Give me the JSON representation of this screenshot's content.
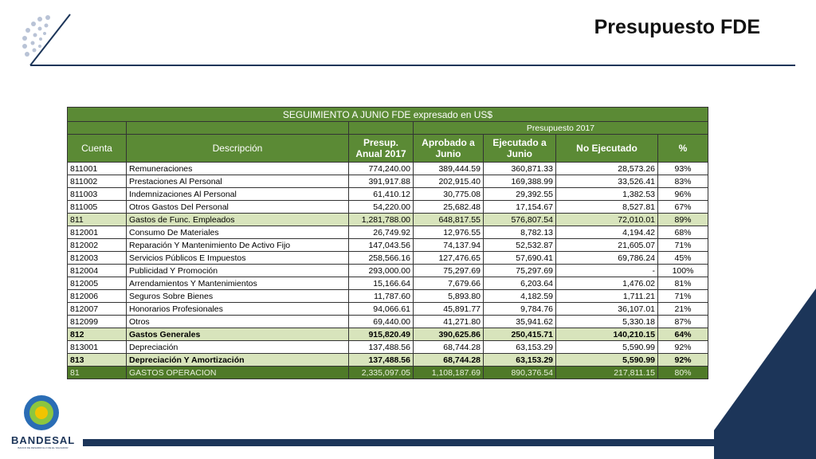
{
  "header": {
    "title": "Presupuesto FDE"
  },
  "logo": {
    "name": "BANDESAL",
    "tagline": "BANCO DE DESARROLLO DE EL SALVADOR"
  },
  "table": {
    "caption": "SEGUIMIENTO A JUNIO   FDE   expresado en US$",
    "group": "Presupuesto 2017",
    "columns": [
      "Cuenta",
      "Descripción",
      "Presup. Anual 2017",
      "Aprobado a Junio",
      "Ejecutado a Junio",
      "No Ejecutado",
      "%"
    ],
    "rows": [
      [
        "811001",
        "Remuneraciones",
        "774,240.00",
        "389,444.59",
        "360,871.33",
        "28,573.26",
        "93%"
      ],
      [
        "811002",
        "Prestaciones Al Personal",
        "391,917.88",
        "202,915.40",
        "169,388.99",
        "33,526.41",
        "83%"
      ],
      [
        "811003",
        "Indemnizaciones Al Personal",
        "61,410.12",
        "30,775.08",
        "29,392.55",
        "1,382.53",
        "96%"
      ],
      [
        "811005",
        "Otros Gastos Del Personal",
        "54,220.00",
        "25,682.48",
        "17,154.67",
        "8,527.81",
        "67%"
      ],
      [
        "811",
        "Gastos de Func. Empleados",
        "1,281,788.00",
        "648,817.55",
        "576,807.54",
        "72,010.01",
        "89%"
      ],
      [
        "812001",
        "Consumo De Materiales",
        "26,749.92",
        "12,976.55",
        "8,782.13",
        "4,194.42",
        "68%"
      ],
      [
        "812002",
        "Reparación Y Mantenimiento De Activo Fijo",
        "147,043.56",
        "74,137.94",
        "52,532.87",
        "21,605.07",
        "71%"
      ],
      [
        "812003",
        "Servicios Públicos E Impuestos",
        "258,566.16",
        "127,476.65",
        "57,690.41",
        "69,786.24",
        "45%"
      ],
      [
        "812004",
        "Publicidad Y Promoción",
        "293,000.00",
        "75,297.69",
        "75,297.69",
        "-",
        "100%"
      ],
      [
        "812005",
        "Arrendamientos Y Mantenimientos",
        "15,166.64",
        "7,679.66",
        "6,203.64",
        "1,476.02",
        "81%"
      ],
      [
        "812006",
        "Seguros Sobre Bienes",
        "11,787.60",
        "5,893.80",
        "4,182.59",
        "1,711.21",
        "71%"
      ],
      [
        "812007",
        "Honorarios Profesionales",
        "94,066.61",
        "45,891.77",
        "9,784.76",
        "36,107.01",
        "21%"
      ],
      [
        "812099",
        "Otros",
        "69,440.00",
        "41,271.80",
        "35,941.62",
        "5,330.18",
        "87%"
      ],
      [
        "812",
        "Gastos Generales",
        "915,820.49",
        "390,625.86",
        "250,415.71",
        "140,210.15",
        "64%"
      ],
      [
        "813001",
        "Depreciación",
        "137,488.56",
        "68,744.28",
        "63,153.29",
        "5,590.99",
        "92%"
      ],
      [
        "813",
        "Depreciación Y Amortización",
        "137,488.56",
        "68,744.28",
        "63,153.29",
        "5,590.99",
        "92%"
      ],
      [
        "81",
        "GASTOS OPERACION",
        "2,335,097.05",
        "1,108,187.69",
        "890,376.54",
        "217,811.15",
        "80%"
      ]
    ]
  }
}
